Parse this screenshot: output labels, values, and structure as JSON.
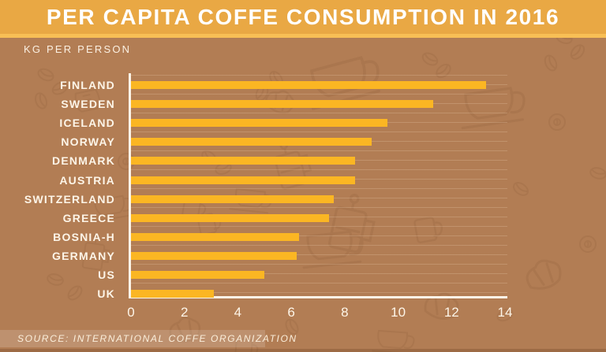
{
  "chart_data": {
    "type": "bar",
    "orientation": "horizontal",
    "title": "PER CAPITA COFFE CONSUMPTION IN 2016",
    "unit_label": "KG PER PERSON",
    "source": "SOURCE: INTERNATIONAL COFFE ORGANIZATION",
    "categories": [
      "FINLAND",
      "SWEDEN",
      "ICELAND",
      "NORWAY",
      "DENMARK",
      "AUSTRIA",
      "SWITZERLAND",
      "GREECE",
      "BOSNIA-H",
      "GERMANY",
      "US",
      "UK"
    ],
    "values": [
      13.3,
      11.3,
      9.6,
      9.0,
      8.4,
      8.4,
      7.6,
      7.4,
      6.3,
      6.2,
      5.0,
      3.1
    ],
    "xlim": [
      0,
      14
    ],
    "x_ticks": [
      0,
      2,
      4,
      6,
      8,
      10,
      12,
      14
    ],
    "ylabel": "",
    "xlabel": "",
    "legend": "none",
    "grid": "subtle horizontal stripes across plot area"
  },
  "colors": {
    "banner_gold": "#E9A844",
    "accent_strip": "#F8BF55",
    "background_brown": "#B27D54",
    "bar_yellow": "#FBB623",
    "axis_white": "#FDF5E8",
    "title_text": "#FFFFFF",
    "doodle_outline": "#7E5330"
  },
  "background": {
    "doodle_icons": [
      "coffee-cup-icon",
      "coffee-bean-icon",
      "french-press-icon",
      "croissant-icon",
      "mug-icon",
      "donut-icon",
      "measuring-jug-icon"
    ]
  }
}
